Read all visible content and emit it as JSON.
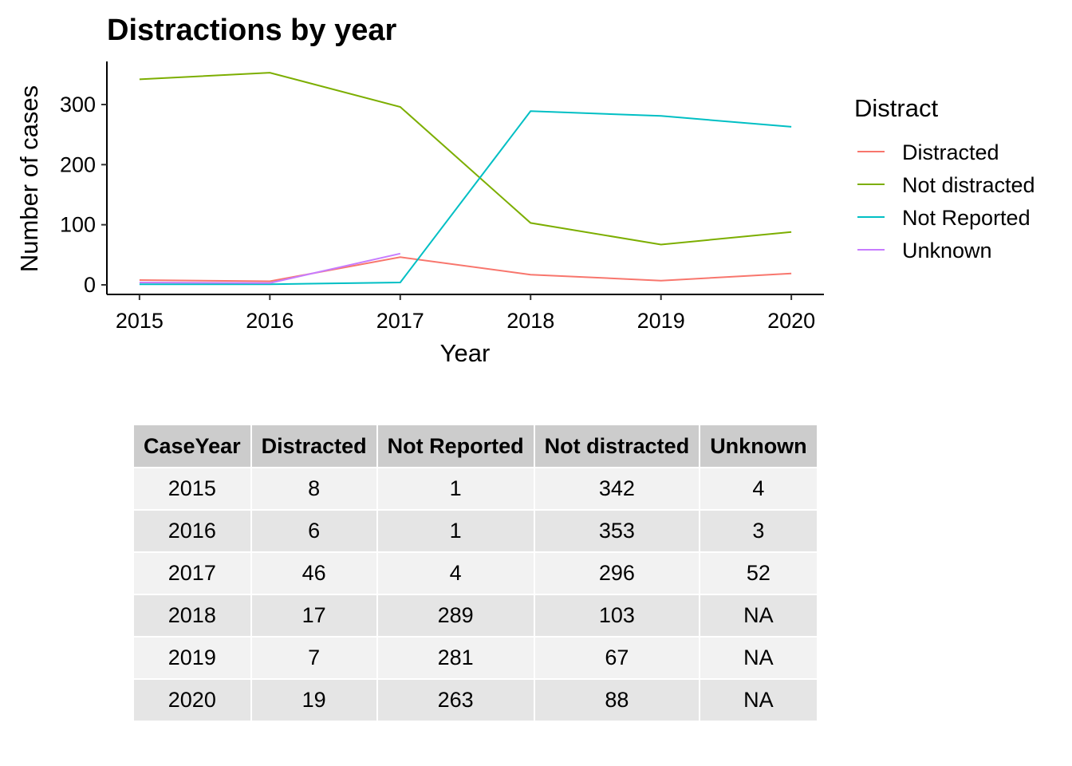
{
  "chart_data": {
    "type": "line",
    "title": "Distractions by year",
    "xlabel": "Year",
    "ylabel": "Number of cases",
    "x": [
      2015,
      2016,
      2017,
      2018,
      2019,
      2020
    ],
    "x_ticks": [
      "2015",
      "2016",
      "2017",
      "2018",
      "2019",
      "2020"
    ],
    "y_ticks": [
      "0",
      "100",
      "200",
      "300"
    ],
    "ylim": [
      0,
      370
    ],
    "grid": false,
    "legend": {
      "title": "Distract",
      "placement": "right"
    },
    "series": [
      {
        "name": "Distracted",
        "color": "#F8766D",
        "values": [
          8,
          6,
          46,
          17,
          7,
          19
        ]
      },
      {
        "name": "Not distracted",
        "color": "#7CAE00",
        "values": [
          342,
          353,
          296,
          103,
          67,
          88
        ]
      },
      {
        "name": "Not Reported",
        "color": "#00BFC4",
        "values": [
          1,
          1,
          4,
          289,
          281,
          263
        ]
      },
      {
        "name": "Unknown",
        "color": "#C77CFF",
        "values": [
          4,
          3,
          52,
          null,
          null,
          null
        ]
      }
    ]
  },
  "table": {
    "headers": [
      "CaseYear",
      "Distracted",
      "Not Reported",
      "Not distracted",
      "Unknown"
    ],
    "rows": [
      [
        "2015",
        "8",
        "1",
        "342",
        "4"
      ],
      [
        "2016",
        "6",
        "1",
        "353",
        "3"
      ],
      [
        "2017",
        "46",
        "4",
        "296",
        "52"
      ],
      [
        "2018",
        "17",
        "289",
        "103",
        "NA"
      ],
      [
        "2019",
        "7",
        "281",
        "67",
        "NA"
      ],
      [
        "2020",
        "19",
        "263",
        "88",
        "NA"
      ]
    ]
  }
}
